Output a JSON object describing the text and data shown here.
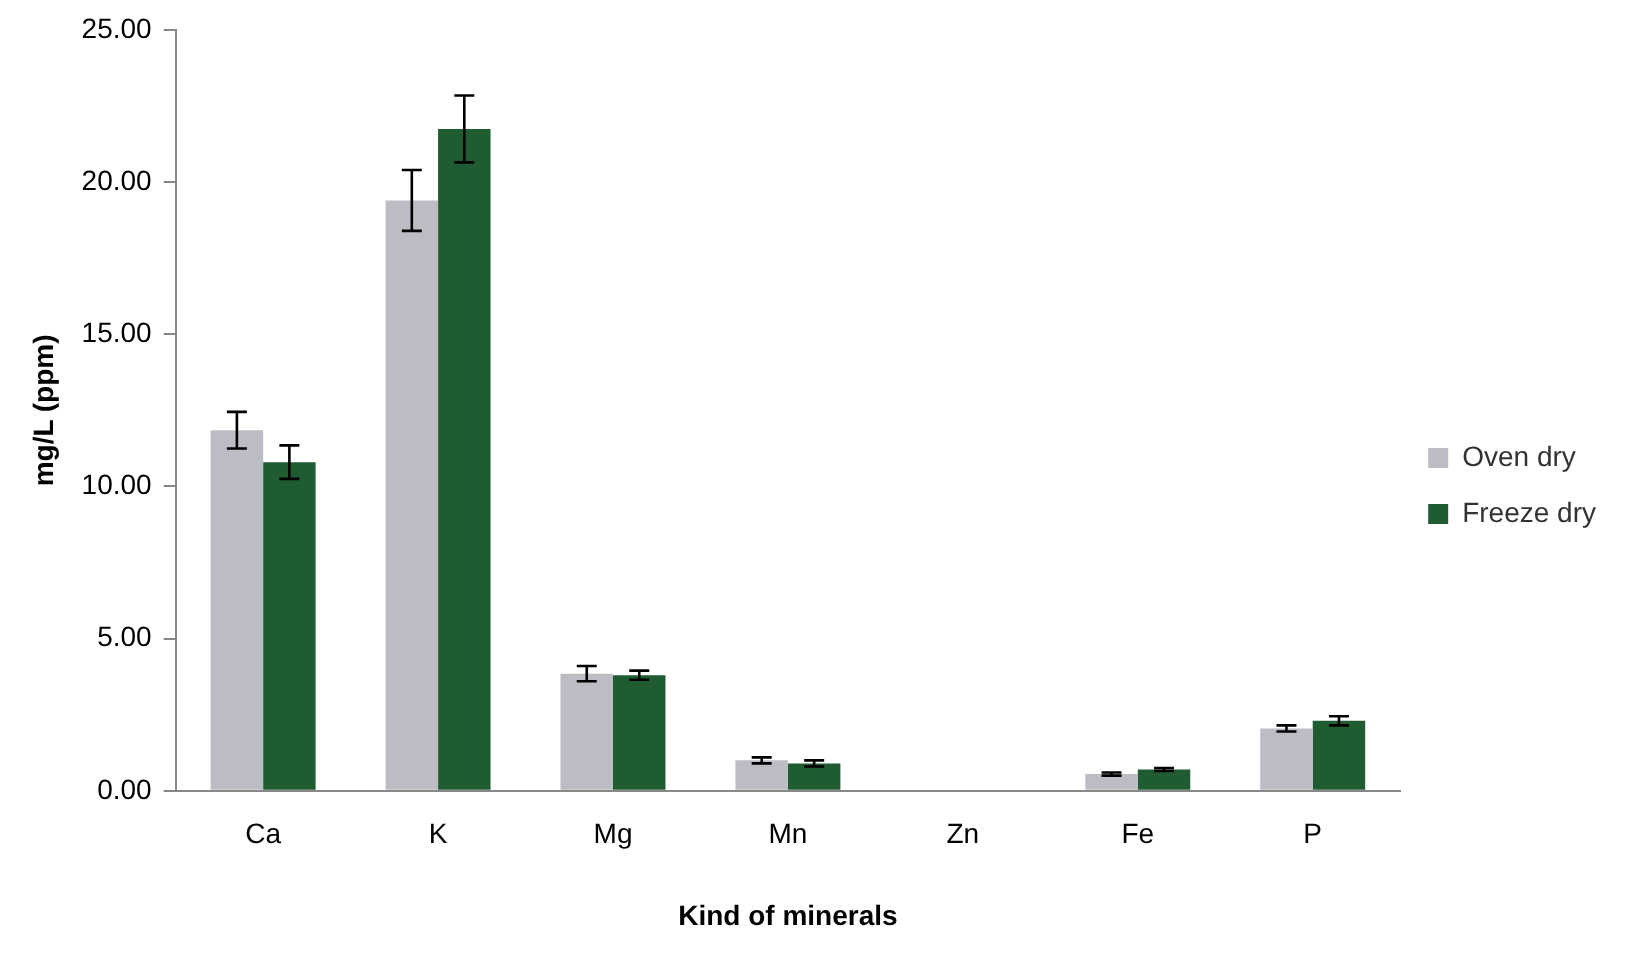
{
  "chart_data": {
    "type": "bar",
    "xlabel": "Kind of minerals",
    "ylabel": "mg/L (ppm)",
    "categories": [
      "Ca",
      "K",
      "Mg",
      "Mn",
      "Zn",
      "Fe",
      "P"
    ],
    "series": [
      {
        "name": "Oven dry",
        "color": "#bcbcc4",
        "values": [
          11.85,
          19.4,
          3.85,
          1.0,
          0,
          0.55,
          2.05
        ],
        "errors": [
          0.6,
          1.0,
          0.25,
          0.1,
          null,
          0.05,
          0.1
        ]
      },
      {
        "name": "Freeze dry",
        "color": "#1f5c32",
        "values": [
          10.8,
          21.75,
          3.8,
          0.9,
          0,
          0.7,
          2.3
        ],
        "errors": [
          0.55,
          1.1,
          0.15,
          0.1,
          null,
          0.05,
          0.15
        ]
      }
    ],
    "ylim": [
      0,
      25
    ],
    "yticks": [
      {
        "value": 0,
        "label": "0.00"
      },
      {
        "value": 5,
        "label": "5.00"
      },
      {
        "value": 10,
        "label": "10.00"
      },
      {
        "value": 15,
        "label": "15.00"
      },
      {
        "value": 20,
        "label": "20.00"
      },
      {
        "value": 25,
        "label": "25.00"
      }
    ],
    "grid": false,
    "legend": "right"
  }
}
